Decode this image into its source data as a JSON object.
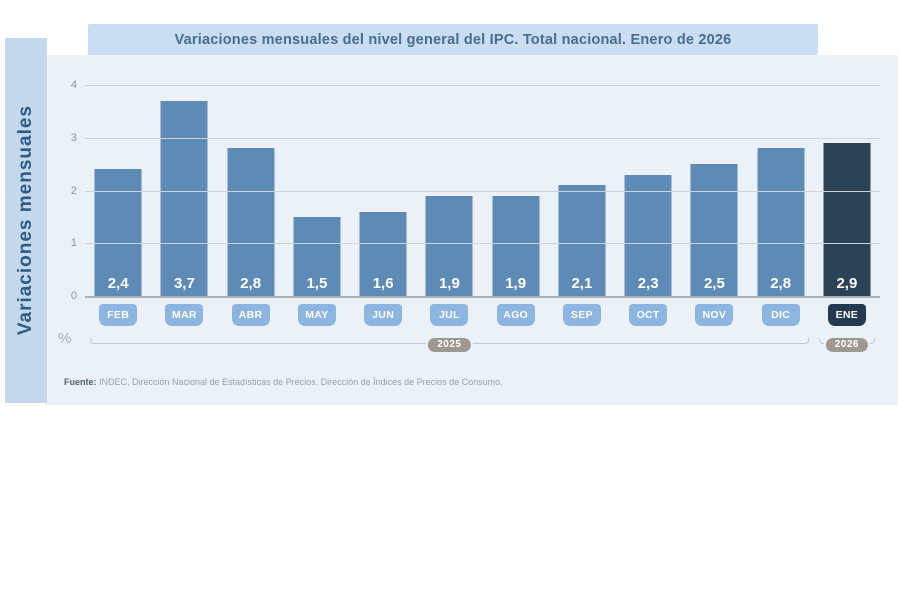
{
  "header": {
    "title": "Variaciones mensuales del nivel general del IPC. Total nacional. Enero de 2026"
  },
  "sidebar": {
    "label": "Variaciones mensuales"
  },
  "chart_data": {
    "type": "bar",
    "title": "Variaciones mensuales del nivel general del IPC. Total nacional. Enero de 2026",
    "ylabel": "Variaciones mensuales",
    "unit_label": "%",
    "categories": [
      "FEB",
      "MAR",
      "ABR",
      "MAY",
      "JUN",
      "JUL",
      "AGO",
      "SEP",
      "OCT",
      "NOV",
      "DIC",
      "ENE"
    ],
    "values": [
      2.4,
      3.7,
      2.8,
      1.5,
      1.6,
      1.9,
      1.9,
      2.1,
      2.3,
      2.5,
      2.8,
      2.9
    ],
    "value_labels": [
      "2,4",
      "3,7",
      "2,8",
      "1,5",
      "1,6",
      "1,9",
      "1,9",
      "2,1",
      "2,3",
      "2,5",
      "2,8",
      "2,9"
    ],
    "ylim": [
      0,
      4
    ],
    "yticks": [
      0,
      1,
      2,
      3,
      4
    ],
    "grid": true,
    "legend": "none",
    "highlight_index": 11,
    "year_groups": [
      {
        "label": "2025",
        "start": 0,
        "end": 10
      },
      {
        "label": "2026",
        "start": 11,
        "end": 11
      }
    ]
  },
  "footer": {
    "source_label": "Fuente:",
    "source_text": " INDEC, Dirección Nacional de Estadísticas de Precios. Dirección de Índices de Precios de Consumo."
  },
  "colors": {
    "bar": "#5e8ab6",
    "bar_highlight": "#2c4257",
    "badge": "#8cb5e1",
    "badge_highlight": "#243a50",
    "year_pill": "#9d9992",
    "title_bar_bg": "#c9def1",
    "panel_bg": "#ebf1f7",
    "sidebar_bg": "#c3d8eb",
    "gridline": "#ccd3da",
    "axis_line": "#a9b0b7"
  }
}
